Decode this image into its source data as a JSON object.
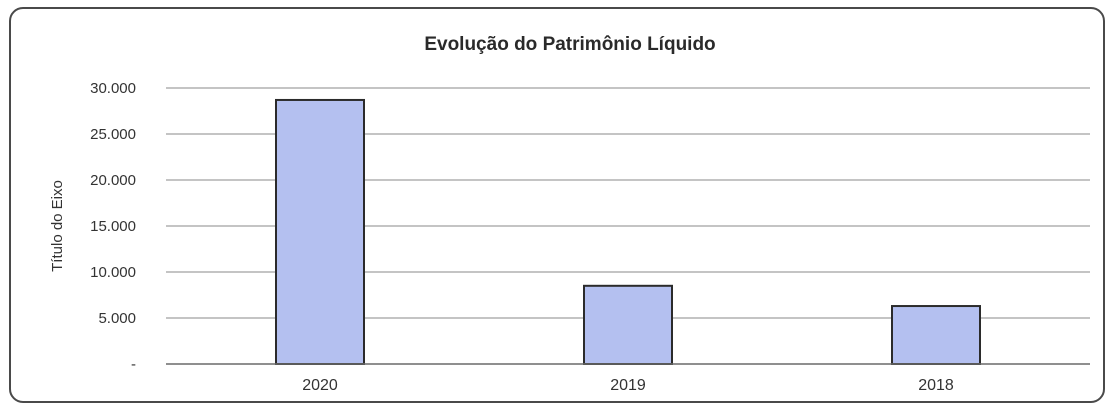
{
  "chart_data": {
    "type": "bar",
    "title": "Evolução do Patrimônio Líquido",
    "ylabel": "Título do Eixo",
    "xlabel": "",
    "categories": [
      "2020",
      "2019",
      "2018"
    ],
    "values": [
      28700,
      8500,
      6300
    ],
    "ylim": [
      0,
      30000
    ],
    "yticks": [
      {
        "value": 30000,
        "label": "30.000"
      },
      {
        "value": 25000,
        "label": "25.000"
      },
      {
        "value": 20000,
        "label": "20.000"
      },
      {
        "value": 15000,
        "label": "15.000"
      },
      {
        "value": 10000,
        "label": "10.000"
      },
      {
        "value": 5000,
        "label": "5.000"
      },
      {
        "value": 0,
        "label": "-"
      }
    ],
    "grid": true,
    "legend": "none",
    "bar_color": "#b4c0f0",
    "bar_edge_color": "#2b2b2b"
  }
}
